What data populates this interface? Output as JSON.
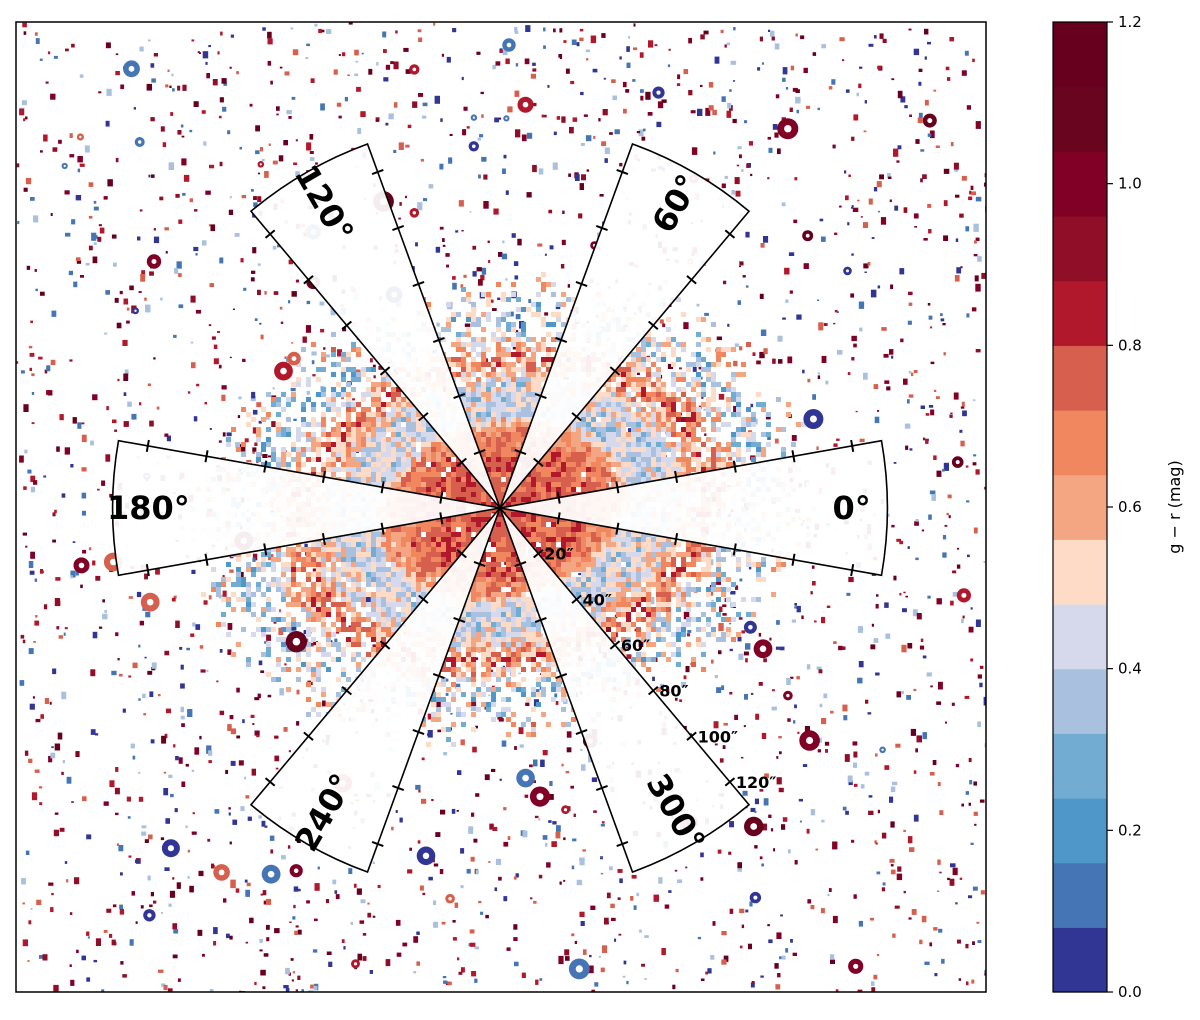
{
  "chart_data": {
    "type": "heatmap",
    "description_kind": "g-r colour map of a galaxy with radial wedge sectors",
    "colorbar": {
      "label": "g − r (mag)",
      "range": [
        0.0,
        1.2
      ],
      "n_levels": 15,
      "ticks": [
        "0.0",
        "0.2",
        "0.4",
        "0.6",
        "0.8",
        "1.0",
        "1.2"
      ],
      "tick_values": [
        0.0,
        0.2,
        0.4,
        0.6,
        0.8,
        1.0,
        1.2
      ],
      "colors": [
        "#313695",
        "#4575b4",
        "#4f96c9",
        "#72acd3",
        "#a9c0de",
        "#d6d8eb",
        "#fddbc7",
        "#f4a582",
        "#f0875f",
        "#d6604d",
        "#b2182b",
        "#900e28",
        "#800026",
        "#6a0520",
        "#67001f"
      ]
    },
    "sectors": [
      {
        "angle_deg": 0,
        "label": "0°"
      },
      {
        "angle_deg": 60,
        "label": "60°"
      },
      {
        "angle_deg": 120,
        "label": "120°"
      },
      {
        "angle_deg": 180,
        "label": "180°"
      },
      {
        "angle_deg": 240,
        "label": "240°"
      },
      {
        "angle_deg": 300,
        "label": "300°"
      }
    ],
    "sector_half_width_deg": 10,
    "max_radius_arcsec": 130,
    "radius_ticks_arcsec": [
      20,
      40,
      60,
      80,
      100,
      120
    ],
    "radius_tick_labels": [
      "20″",
      "40″",
      "60″",
      "80″",
      "100″",
      "120″"
    ],
    "galaxy_colour_profile": [
      {
        "r": 0,
        "g_r": 0.78
      },
      {
        "r": 28,
        "g_r": 0.74
      },
      {
        "r": 38,
        "g_r": 0.66
      },
      {
        "r": 45,
        "g_r": 0.42
      },
      {
        "r": 58,
        "g_r": 0.46
      },
      {
        "r": 70,
        "g_r": 0.72
      },
      {
        "r": 85,
        "g_r": 0.36
      },
      {
        "r": 100,
        "g_r": 0.5
      }
    ]
  }
}
